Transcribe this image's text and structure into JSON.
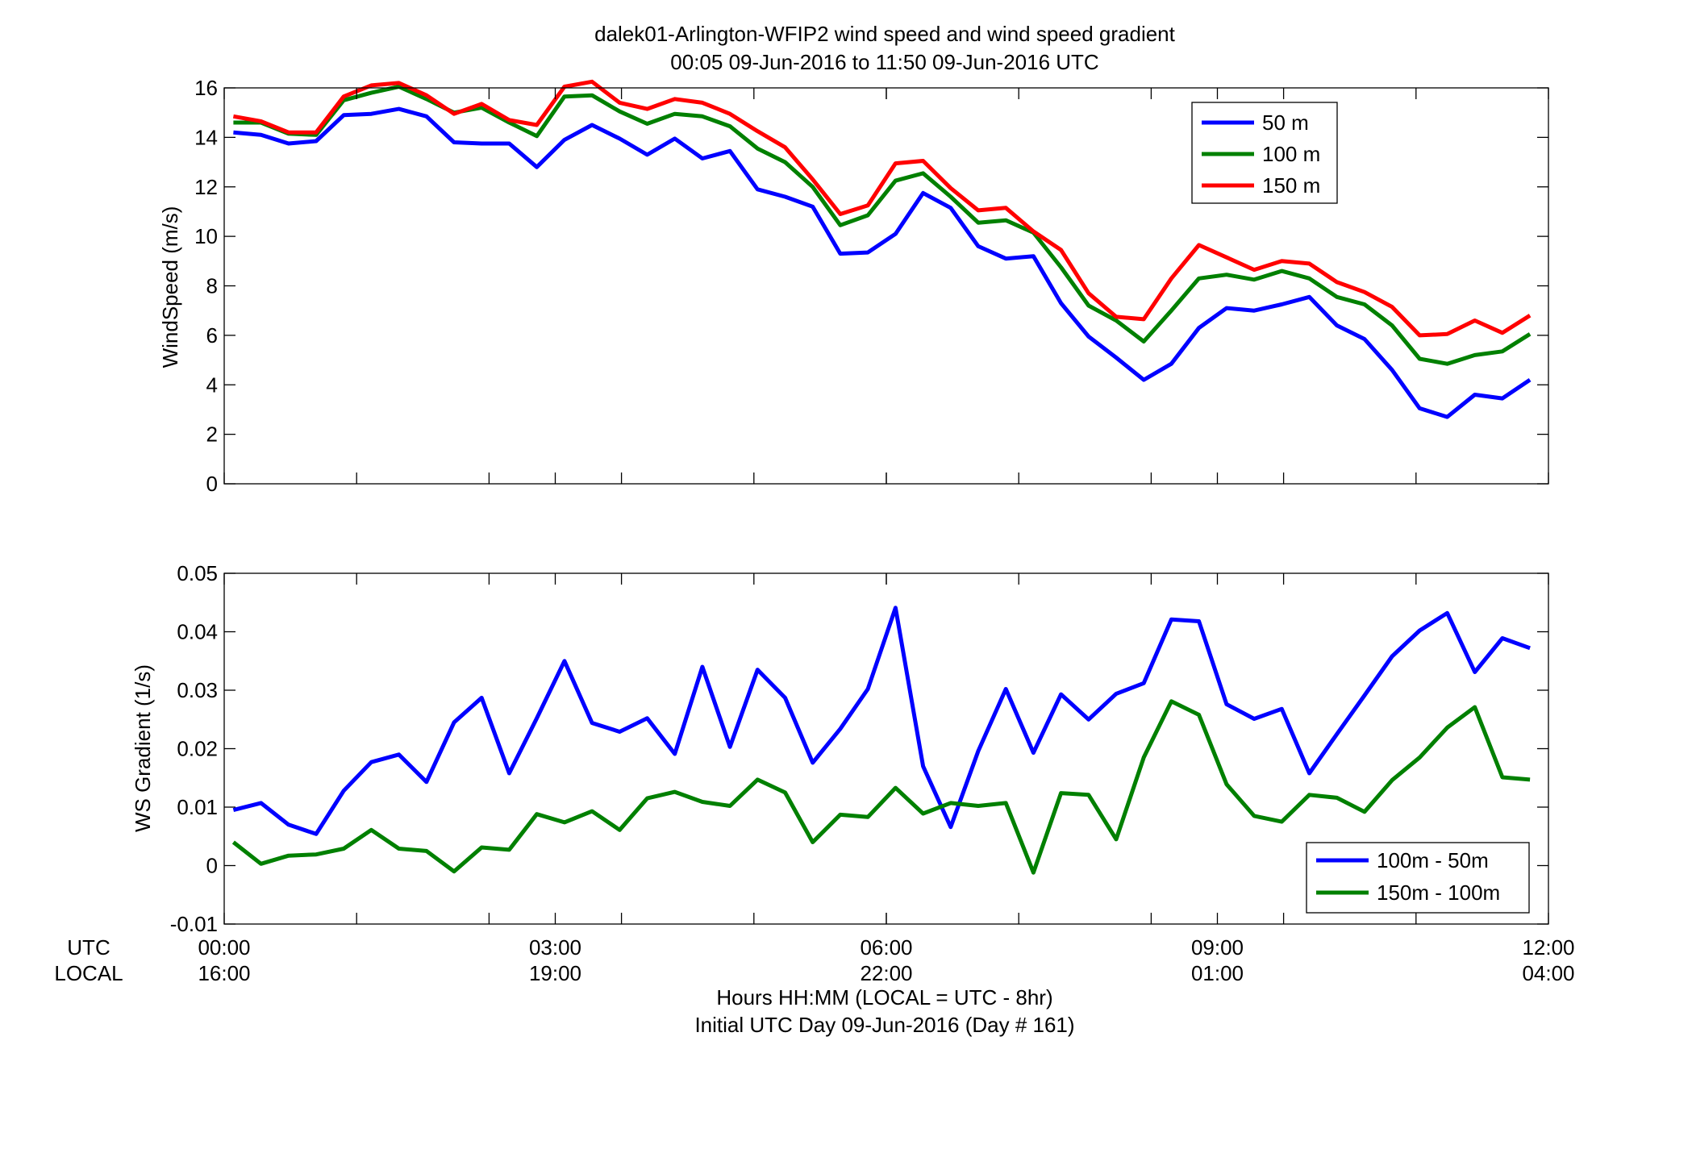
{
  "titles": {
    "line1": "dalek01-Arlington-WFIP2  wind speed and wind speed gradient",
    "line2": "00:05 09-Jun-2016 to 11:50 09-Jun-2016  UTC"
  },
  "xaxis": {
    "row_label_utc": "UTC",
    "row_label_local": "LOCAL",
    "ticks_utc": [
      "00:00",
      "03:00",
      "06:00",
      "09:00",
      "12:00"
    ],
    "ticks_local": [
      "16:00",
      "19:00",
      "22:00",
      "01:00",
      "04:00"
    ],
    "label1": "Hours HH:MM  (LOCAL = UTC - 8hr)",
    "label2": "Initial UTC Day 09-Jun-2016 (Day # 161)"
  },
  "colors": {
    "blue": "#0000ff",
    "green": "#008000",
    "red": "#ff0000"
  },
  "chart_data": [
    {
      "type": "line",
      "ylabel": "WindSpeed (m/s)",
      "xlim": [
        0,
        12
      ],
      "ylim": [
        0,
        16
      ],
      "yticks": [
        "0",
        "2",
        "4",
        "6",
        "8",
        "10",
        "12",
        "14",
        "16"
      ],
      "x_ticks_hours": [
        0,
        3,
        6,
        9,
        12
      ],
      "x_minor_ticks_hours": [
        1.2,
        2.4,
        3.6,
        4.8,
        6.0,
        7.2,
        8.4,
        9.6,
        10.8
      ],
      "grid": false,
      "legend_position": "top-right",
      "x": [
        0.083,
        0.333,
        0.583,
        0.833,
        1.083,
        1.333,
        1.583,
        1.833,
        2.083,
        2.333,
        2.583,
        2.833,
        3.083,
        3.333,
        3.583,
        3.833,
        4.083,
        4.333,
        4.583,
        4.833,
        5.083,
        5.333,
        5.583,
        5.833,
        6.083,
        6.333,
        6.583,
        6.833,
        7.083,
        7.333,
        7.583,
        7.833,
        8.083,
        8.333,
        8.583,
        8.833,
        9.083,
        9.333,
        9.583,
        9.833,
        10.083,
        10.333,
        10.583,
        10.833,
        11.083,
        11.333,
        11.583,
        11.833
      ],
      "series": [
        {
          "name": "50 m",
          "color": "#0000ff",
          "values": [
            14.2,
            14.1,
            13.75,
            13.85,
            14.9,
            14.95,
            15.15,
            14.85,
            13.8,
            13.75,
            13.75,
            12.8,
            13.9,
            14.5,
            13.95,
            13.3,
            13.95,
            13.15,
            13.45,
            11.9,
            11.6,
            11.2,
            9.3,
            9.35,
            10.1,
            11.75,
            11.15,
            9.6,
            9.1,
            9.2,
            7.3,
            5.95,
            5.1,
            4.2,
            4.85,
            6.3,
            7.1,
            7.0,
            7.25,
            7.55,
            6.4,
            5.85,
            4.6,
            3.05,
            2.7,
            3.6,
            3.45,
            4.2
          ]
        },
        {
          "name": "100 m",
          "color": "#008000",
          "values": [
            14.6,
            14.6,
            14.15,
            14.1,
            15.5,
            15.8,
            16.05,
            15.55,
            15.0,
            15.2,
            14.6,
            14.05,
            15.65,
            15.7,
            15.05,
            14.55,
            14.95,
            14.85,
            14.45,
            13.55,
            13.0,
            12.0,
            10.45,
            10.85,
            12.25,
            12.55,
            11.6,
            10.55,
            10.65,
            10.15,
            8.75,
            7.2,
            6.6,
            5.75,
            7.0,
            8.3,
            8.45,
            8.25,
            8.6,
            8.3,
            7.55,
            7.25,
            6.4,
            5.05,
            4.85,
            5.2,
            5.35,
            6.05
          ]
        },
        {
          "name": "150 m",
          "color": "#ff0000",
          "values": [
            14.85,
            14.65,
            14.2,
            14.2,
            15.65,
            16.1,
            16.2,
            15.7,
            14.95,
            15.35,
            14.7,
            14.5,
            16.05,
            16.25,
            15.4,
            15.15,
            15.55,
            15.4,
            14.95,
            14.25,
            13.6,
            12.3,
            10.9,
            11.25,
            12.95,
            13.05,
            11.95,
            11.05,
            11.15,
            10.2,
            9.45,
            7.7,
            6.75,
            6.65,
            8.3,
            9.65,
            9.15,
            8.65,
            9.0,
            8.9,
            8.15,
            7.75,
            7.15,
            6.0,
            6.05,
            6.6,
            6.1,
            6.8
          ]
        }
      ]
    },
    {
      "type": "line",
      "ylabel": "WS Gradient (1/s)",
      "xlim": [
        0,
        12
      ],
      "ylim": [
        -0.01,
        0.05
      ],
      "yticks": [
        "-0.01",
        "0",
        "0.01",
        "0.02",
        "0.03",
        "0.04",
        "0.05"
      ],
      "x_ticks_hours": [
        0,
        3,
        6,
        9,
        12
      ],
      "x_minor_ticks_hours": [
        1.2,
        2.4,
        3.6,
        4.8,
        6.0,
        7.2,
        8.4,
        9.6,
        10.8
      ],
      "grid": false,
      "legend_position": "bottom-right",
      "x": [
        0.083,
        0.333,
        0.583,
        0.833,
        1.083,
        1.333,
        1.583,
        1.833,
        2.083,
        2.333,
        2.583,
        2.833,
        3.083,
        3.333,
        3.583,
        3.833,
        4.083,
        4.333,
        4.583,
        4.833,
        5.083,
        5.333,
        5.583,
        5.833,
        6.083,
        6.333,
        6.583,
        6.833,
        7.083,
        7.333,
        7.583,
        7.833,
        8.083,
        8.333,
        8.583,
        8.833,
        9.083,
        9.333,
        9.583,
        9.833,
        10.083,
        10.333,
        10.583,
        10.833,
        11.083,
        11.333,
        11.583,
        11.833
      ],
      "series": [
        {
          "name": "100m - 50m",
          "color": "#0000ff",
          "values": [
            0.0095,
            0.0107,
            0.007,
            0.0054,
            0.0128,
            0.0177,
            0.019,
            0.0143,
            0.0245,
            0.0287,
            0.0158,
            0.0252,
            0.035,
            0.0244,
            0.0229,
            0.0252,
            0.0191,
            0.034,
            0.0203,
            0.0335,
            0.0287,
            0.0176,
            0.0234,
            0.0302,
            0.0441,
            0.017,
            0.0066,
            0.0196,
            0.0302,
            0.0193,
            0.0293,
            0.025,
            0.0294,
            0.0312,
            0.0421,
            0.0418,
            0.0276,
            0.0251,
            0.0268,
            0.0158,
            0.0225,
            0.0291,
            0.0358,
            0.0402,
            0.0432,
            0.0331,
            0.0389,
            0.0372
          ]
        },
        {
          "name": "150m - 100m",
          "color": "#008000",
          "values": [
            0.004,
            0.0003,
            0.0017,
            0.0019,
            0.0029,
            0.0061,
            0.0029,
            0.0025,
            -0.001,
            0.0031,
            0.0027,
            0.0088,
            0.0074,
            0.0093,
            0.0061,
            0.0115,
            0.0126,
            0.0109,
            0.0102,
            0.0147,
            0.0125,
            0.004,
            0.0087,
            0.0083,
            0.0133,
            0.0089,
            0.0107,
            0.0102,
            0.0107,
            -0.0012,
            0.0124,
            0.0121,
            0.0045,
            0.0185,
            0.0281,
            0.0258,
            0.0139,
            0.0085,
            0.0075,
            0.0121,
            0.0116,
            0.0092,
            0.0146,
            0.0185,
            0.0236,
            0.0271,
            0.0151,
            0.0147
          ]
        }
      ]
    }
  ]
}
